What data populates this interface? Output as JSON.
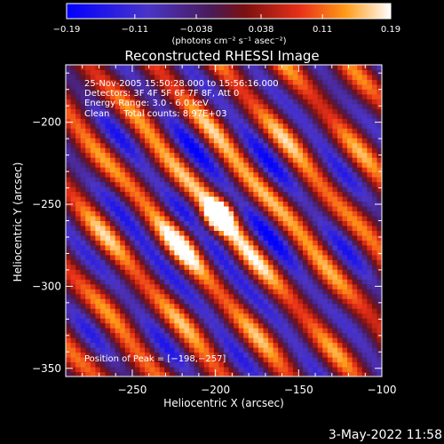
{
  "chart_data": {
    "type": "heatmap",
    "title": "Reconstructed RHESSI Image",
    "xlabel": "Heliocentric X (arcsec)",
    "ylabel": "Heliocentric Y (arcsec)",
    "xlim": [
      -290,
      -100
    ],
    "ylim": [
      -355,
      -165
    ],
    "x_ticks": [
      -250,
      -200,
      -150,
      -100
    ],
    "x_tick_labels": [
      "−250",
      "−200",
      "−150",
      "−100"
    ],
    "y_ticks": [
      -350,
      -300,
      -250,
      -200
    ],
    "y_tick_labels": [
      "−350",
      "−300",
      "−250",
      "−200"
    ],
    "colorbar": {
      "min": -0.19,
      "max": 0.19,
      "ticks": [
        -0.19,
        -0.11,
        -0.038,
        0.038,
        0.11,
        0.19
      ],
      "tick_labels": [
        "−0.19",
        "−0.11",
        "−0.038",
        "0.038",
        "0.11",
        "0.19"
      ],
      "units_label": "(photons cm⁻² s⁻¹ asec⁻²)"
    },
    "annotations": [
      "25-Nov-2005 15:50:28.000 to 15:56:16.000",
      "Detectors: 3F 4F 5F 6F 7F 8F, Att 0",
      "Energy Range: 3.0 - 6.0 keV",
      "Clean     Total counts: 8.97E+03"
    ],
    "peak_label": "Position of Peak = [−198,−257]",
    "peak": {
      "x": -198,
      "y": -257,
      "value": 0.19
    },
    "stripe_angle_deg": 40,
    "stripe_period_arcsec": 30,
    "colors": {
      "background": "#000000",
      "negative_low": "#0000ff",
      "negative_mid": "#5a2aa0",
      "zero": "#3a0e3a",
      "positive_mid": "#e0301a",
      "positive_high": "#ffa018",
      "peak": "#ffffc0"
    }
  },
  "footer": {
    "date_stamp": "3-May-2022 11:58"
  }
}
